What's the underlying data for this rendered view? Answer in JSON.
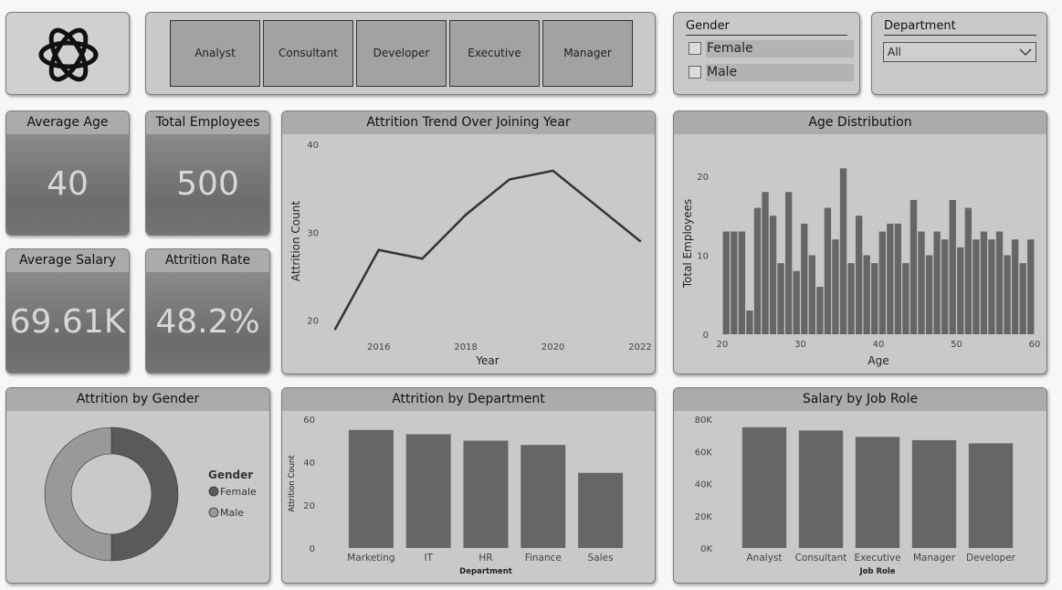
{
  "role_buttons": [
    "Analyst",
    "Consultant",
    "Developer",
    "Executive",
    "Manager"
  ],
  "gender_slicer": {
    "title": "Gender",
    "options": [
      "Female",
      "Male"
    ]
  },
  "department_slicer": {
    "title": "Department",
    "selected": "All"
  },
  "kpis": {
    "average_age": {
      "label": "Average Age",
      "value": "40"
    },
    "total_employees": {
      "label": "Total Employees",
      "value": "500"
    },
    "average_salary": {
      "label": "Average Salary",
      "value": "69.61K"
    },
    "attrition_rate": {
      "label": "Attrition Rate",
      "value": "48.2%"
    }
  },
  "colors": {
    "bar": "#666666",
    "line": "#333333",
    "female": "#5a5a5a",
    "male": "#999999"
  },
  "chart_data": [
    {
      "id": "trend",
      "type": "line",
      "title": "Attrition Trend Over Joining Year",
      "xlabel": "Year",
      "ylabel": "Attrition Count",
      "x": [
        2015,
        2016,
        2017,
        2018,
        2019,
        2020,
        2021,
        2022
      ],
      "values": [
        19,
        28,
        27,
        32,
        36,
        37,
        33,
        29
      ],
      "xticks": [
        2016,
        2018,
        2020,
        2022
      ],
      "yticks": [
        20,
        30,
        40
      ],
      "xlim": [
        2015,
        2022
      ],
      "ylim": [
        18,
        40
      ]
    },
    {
      "id": "age",
      "type": "bar",
      "title": "Age Distribution",
      "xlabel": "Age",
      "ylabel": "Total Employees",
      "x": [
        21,
        22,
        23,
        24,
        25,
        26,
        27,
        28,
        29,
        30,
        31,
        32,
        33,
        34,
        35,
        36,
        37,
        38,
        39,
        40,
        41,
        42,
        43,
        44,
        45,
        46,
        47,
        48,
        49,
        50,
        51,
        52,
        53,
        54,
        55,
        56,
        57,
        58,
        59,
        60
      ],
      "values": [
        13,
        13,
        13,
        3,
        16,
        18,
        15,
        9,
        18,
        8,
        14,
        10,
        6,
        16,
        12,
        21,
        9,
        15,
        10,
        9,
        13,
        14,
        14,
        9,
        17,
        13,
        10,
        13,
        12,
        17,
        11,
        16,
        12,
        13,
        12,
        13,
        10,
        12,
        9,
        12
      ],
      "xticks": [
        20,
        30,
        40,
        50,
        60
      ],
      "yticks": [
        0,
        10,
        20
      ],
      "xlim": [
        20,
        60
      ],
      "ylim": [
        0,
        23
      ]
    },
    {
      "id": "gender",
      "type": "pie",
      "title": "Attrition by Gender",
      "legend_title": "Gender",
      "categories": [
        "Female",
        "Male"
      ],
      "values": [
        50,
        50
      ]
    },
    {
      "id": "dept",
      "type": "bar",
      "title": "Attrition by Department",
      "xlabel": "Department",
      "ylabel": "Attrition Count",
      "categories": [
        "Marketing",
        "IT",
        "HR",
        "Finance",
        "Sales"
      ],
      "values": [
        55,
        53,
        50,
        48,
        35
      ],
      "yticks": [
        0,
        20,
        40,
        60
      ],
      "ylim": [
        0,
        60
      ]
    },
    {
      "id": "salary",
      "type": "bar",
      "title": "Salary by Job Role",
      "xlabel": "Job Role",
      "ylabel": "",
      "categories": [
        "Analyst",
        "Consultant",
        "Executive",
        "Manager",
        "Developer"
      ],
      "values": [
        75000,
        73000,
        69000,
        67000,
        65000
      ],
      "yticks": [
        "0K",
        "20K",
        "40K",
        "60K",
        "80K"
      ],
      "ylim": [
        0,
        80000
      ]
    }
  ]
}
